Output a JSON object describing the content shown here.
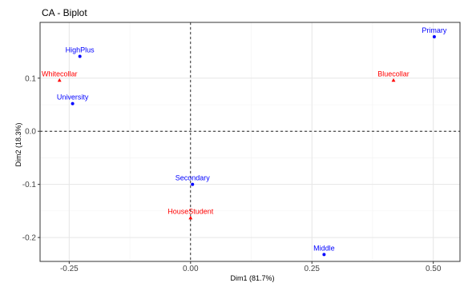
{
  "chart_data": {
    "type": "scatter",
    "title": "CA - Biplot",
    "xlabel": "Dim1 (81.7%)",
    "ylabel": "Dim2 (18.3%)",
    "xlim": [
      -0.31,
      0.555
    ],
    "ylim": [
      -0.245,
      0.205
    ],
    "x_ticks": [
      -0.25,
      0.0,
      0.25,
      0.5
    ],
    "x_tick_labels": [
      "-0.25",
      "0.00",
      "0.25",
      "0.50"
    ],
    "y_ticks": [
      -0.2,
      -0.1,
      0.0,
      0.1
    ],
    "y_tick_labels": [
      "-0.2",
      "-0.1",
      "0.0",
      "0.1"
    ],
    "grid": true,
    "colors": {
      "rows": "#0000ff",
      "cols": "#ff0000"
    },
    "series": [
      {
        "marker": "circle",
        "color": "#0000ff",
        "points": [
          {
            "label": "Primary",
            "x": 0.502,
            "y": 0.178
          },
          {
            "label": "HighPlus",
            "x": -0.228,
            "y": 0.141
          },
          {
            "label": "University",
            "x": -0.243,
            "y": 0.052
          },
          {
            "label": "Secondary",
            "x": 0.004,
            "y": -0.1
          },
          {
            "label": "Middle",
            "x": 0.275,
            "y": -0.232
          }
        ]
      },
      {
        "marker": "triangle",
        "color": "#ff0000",
        "points": [
          {
            "label": "Whitecollar",
            "x": -0.27,
            "y": 0.096
          },
          {
            "label": "Bluecollar",
            "x": 0.418,
            "y": 0.096
          },
          {
            "label": "HouseStudent",
            "x": 0.0,
            "y": -0.163
          }
        ]
      }
    ]
  }
}
